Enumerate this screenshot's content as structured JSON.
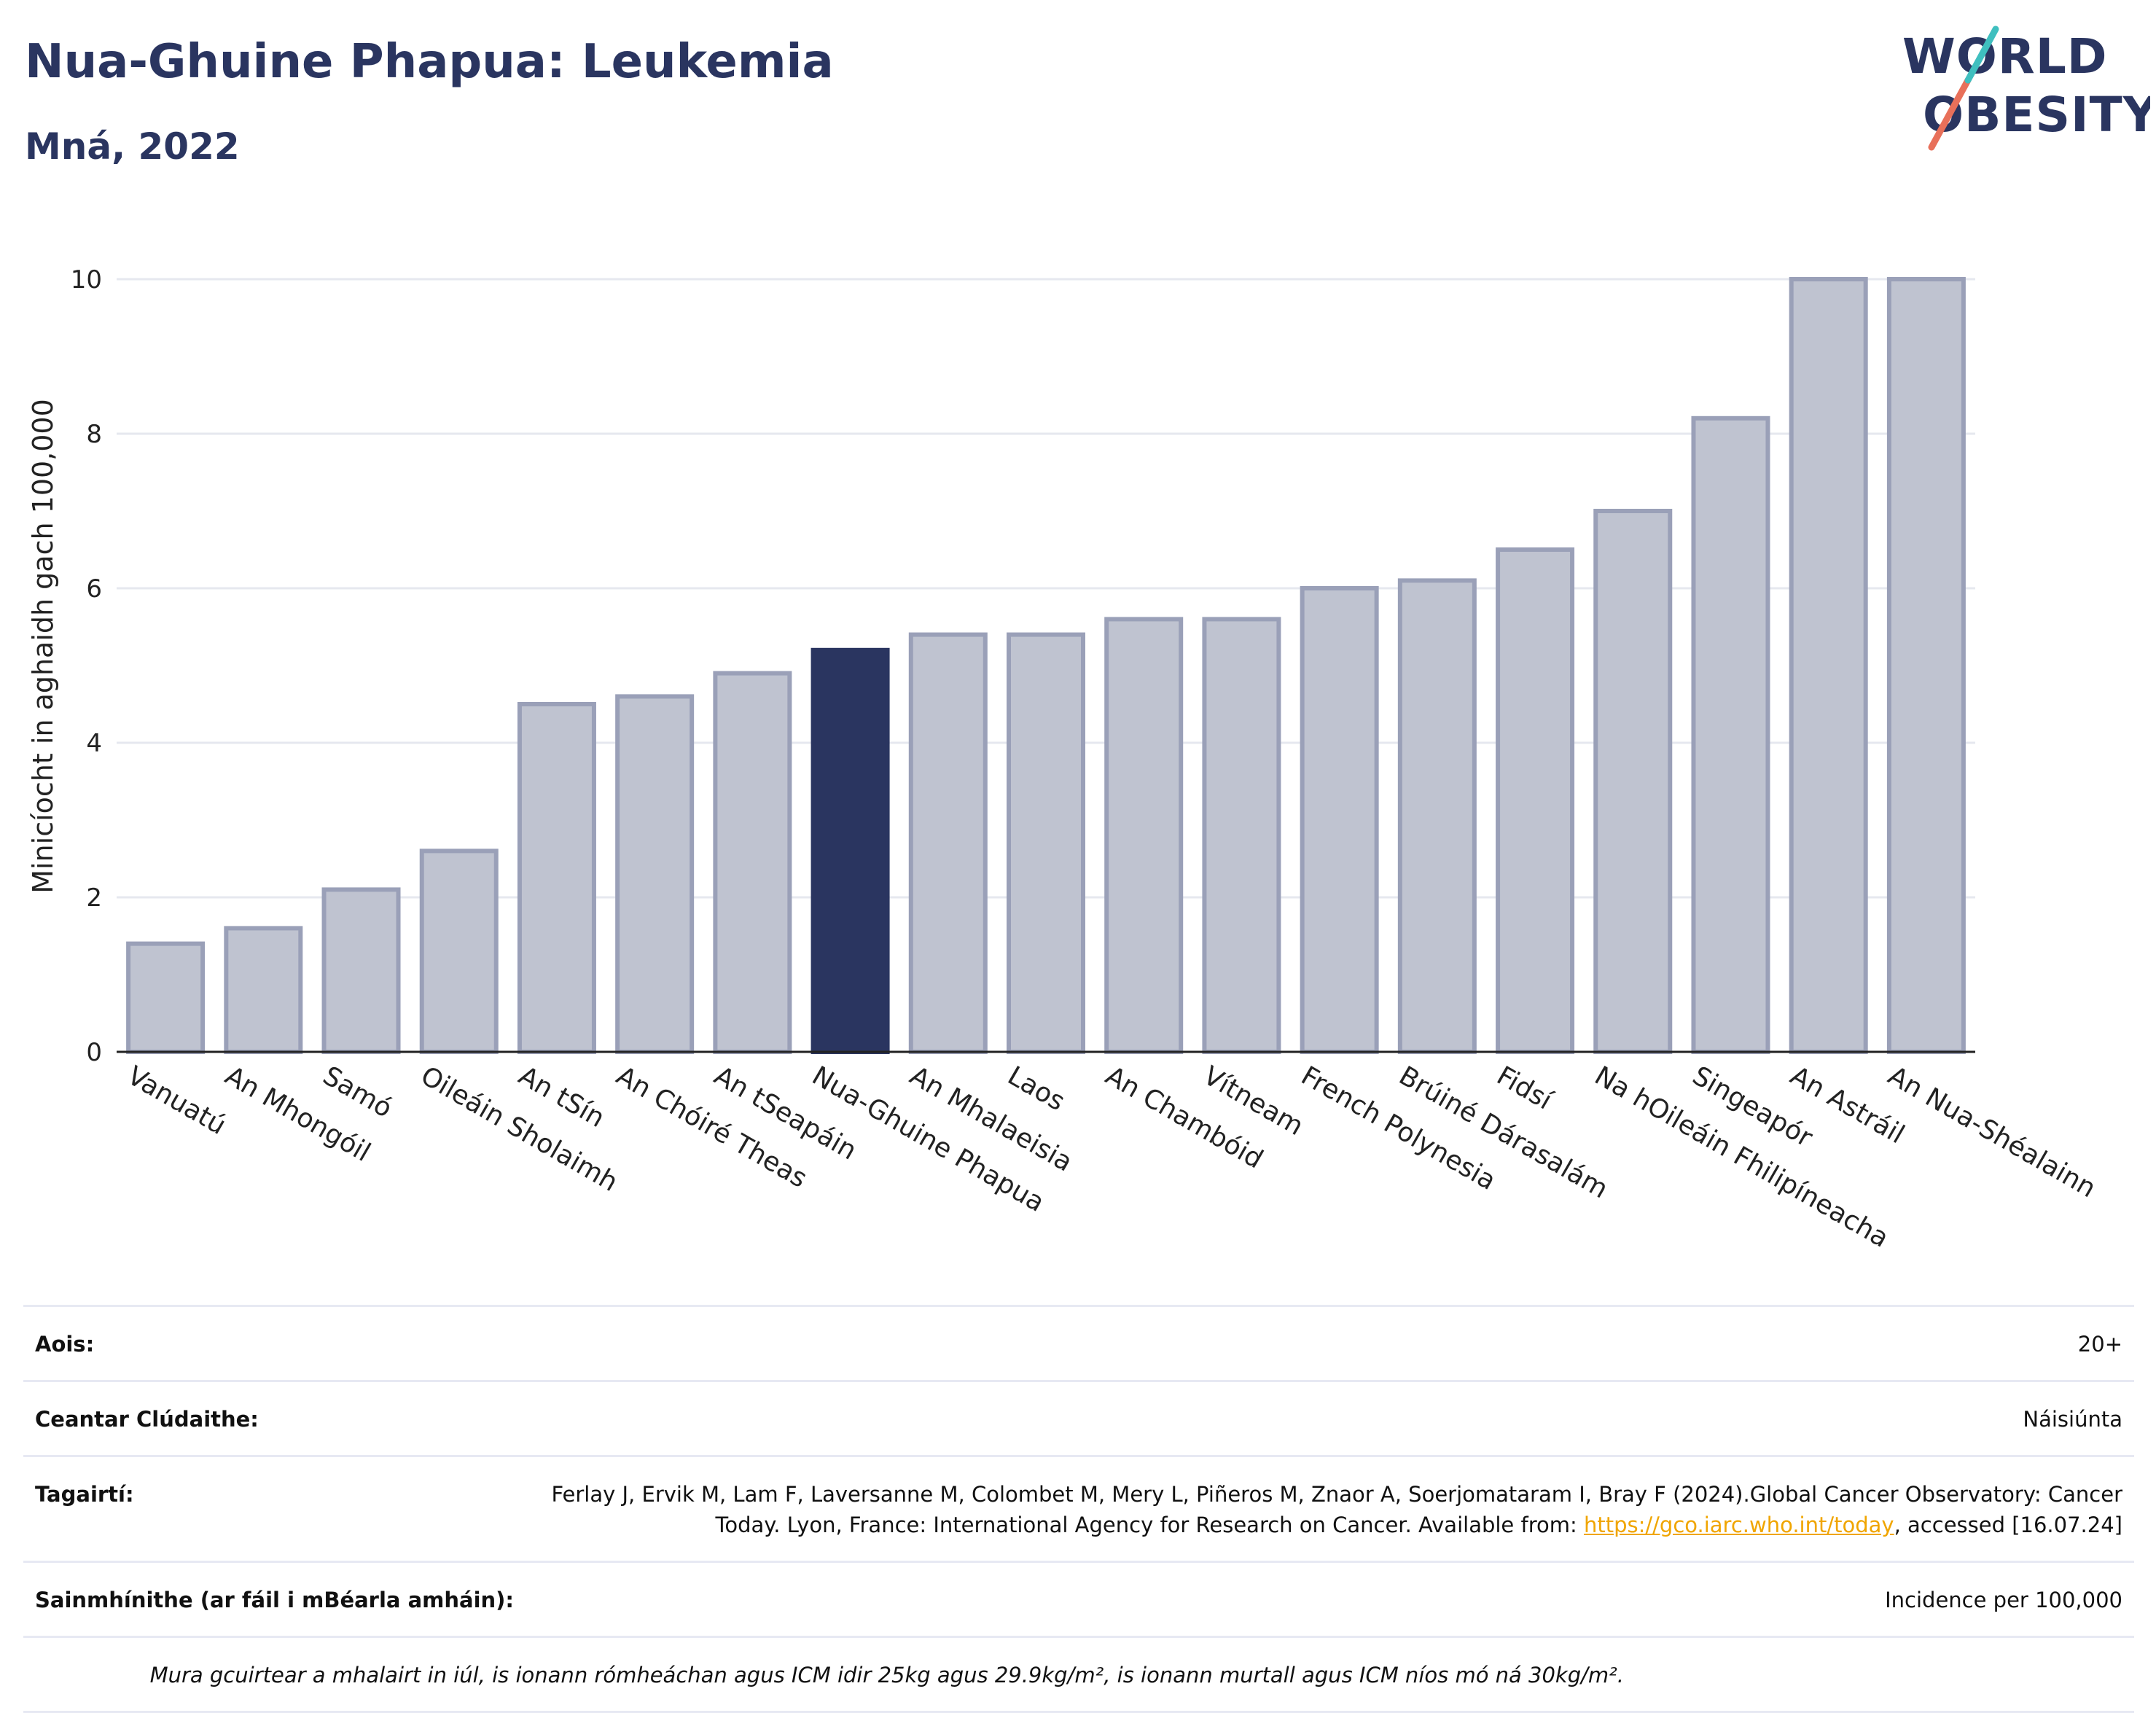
{
  "header": {
    "title": "Nua-Ghuine Phapua: Leukemia",
    "subtitle": "Mná, 2022"
  },
  "logo": {
    "line1": "WORLD",
    "line2": "OBESITY"
  },
  "chart_data": {
    "type": "bar",
    "ylabel": "Minicíocht in aghaidh gach 100,000",
    "xlabel": "",
    "ylim": [
      0,
      10.5
    ],
    "yticks": [
      "0",
      "2",
      "4",
      "6",
      "8",
      "10"
    ],
    "grid": true,
    "highlight": "Nua-Ghuine Phapua",
    "colors": {
      "bar": "#bfc3d0",
      "bar_border": "#9aa0b8",
      "highlight": "#2a3560"
    },
    "categories": [
      "Vanuatú",
      "An Mhongóil",
      "Samó",
      "Oileáin Sholaimh",
      "An tSín",
      "An Chóiré Theas",
      "An tSeapáin",
      "Nua-Ghuine Phapua",
      "An Mhalaeisia",
      "Laos",
      "An Chambóid",
      "Vítneam",
      "French Polynesia",
      "Brúiné Dárasalám",
      "Fidsí",
      "Na hOileáin Fhilipíneacha",
      "Singeapór",
      "An Astráil",
      "An Nua-Shéalainn"
    ],
    "values": [
      1.4,
      1.6,
      2.1,
      2.6,
      4.5,
      4.6,
      4.9,
      5.2,
      5.4,
      5.4,
      5.6,
      5.6,
      6.0,
      6.1,
      6.5,
      7.0,
      8.2,
      10.0,
      10.0
    ]
  },
  "meta": {
    "age_label": "Aois:",
    "age_value": "20+",
    "area_label": "Ceantar Clúdaithe:",
    "area_value": "Náisiúnta",
    "refs_label": "Tagairtí:",
    "refs_text_1": "Ferlay J, Ervik M, Lam F, Laversanne M, Colombet M, Mery L, Piñeros M, Znaor A, Soerjomataram I, Bray F (2024).Global Cancer Observatory: Cancer Today. Lyon, France: International Agency for Research on Cancer. Available from: ",
    "refs_link": "https://gco.iarc.who.int/today",
    "refs_text_2": ", accessed [16.07.24]",
    "defs_label": "Sainmhínithe (ar fáil i mBéarla amháin):",
    "defs_value": "Incidence per 100,000",
    "note": "Mura gcuirtear a mhalairt in iúl, is ionann rómheáchan agus ICM idir 25kg agus 29.9kg/m², is ionann murtall agus ICM níos mó ná 30kg/m²."
  }
}
